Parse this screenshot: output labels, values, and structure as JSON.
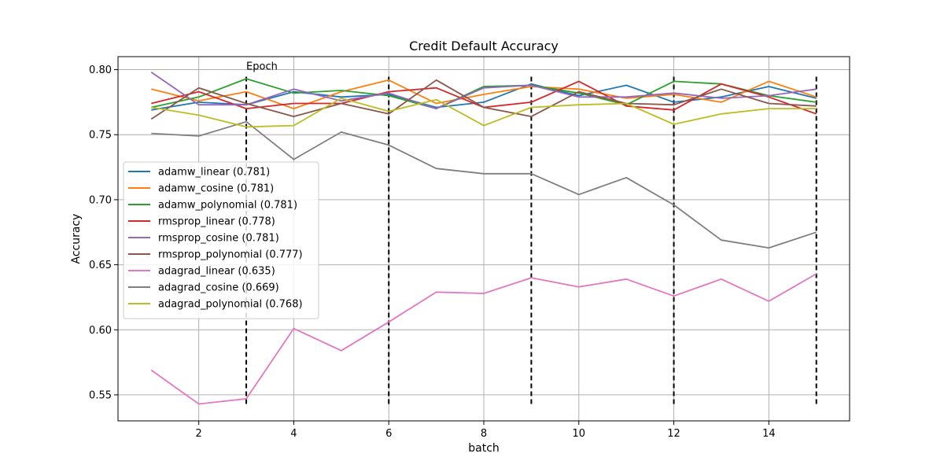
{
  "chart_data": {
    "type": "line",
    "title": "Credit Default Accuracy",
    "xlabel": "batch",
    "ylabel": "Accuracy",
    "xlim": [
      0.3,
      15.7
    ],
    "ylim": [
      0.53,
      0.81
    ],
    "xticks": [
      2,
      4,
      6,
      8,
      10,
      12,
      14
    ],
    "yticks": [
      0.55,
      0.6,
      0.65,
      0.7,
      0.75,
      0.8
    ],
    "ytick_labels": [
      "0.55",
      "0.60",
      "0.65",
      "0.70",
      "0.75",
      "0.80"
    ],
    "grid": true,
    "legend_position": "center-left",
    "x": [
      1,
      2,
      3,
      4,
      5,
      6,
      7,
      8,
      9,
      10,
      11,
      12,
      13,
      14,
      15
    ],
    "series": [
      {
        "name": "adamw_linear (0.781)",
        "color": "#1f77b4",
        "values": [
          0.769,
          0.775,
          0.773,
          0.783,
          0.779,
          0.781,
          0.771,
          0.775,
          0.789,
          0.78,
          0.788,
          0.775,
          0.779,
          0.787,
          0.778
        ]
      },
      {
        "name": "adamw_cosine (0.781)",
        "color": "#ff7f0e",
        "values": [
          0.785,
          0.776,
          0.783,
          0.77,
          0.783,
          0.792,
          0.774,
          0.781,
          0.787,
          0.785,
          0.778,
          0.781,
          0.775,
          0.791,
          0.779
        ]
      },
      {
        "name": "adamw_polynomial (0.781)",
        "color": "#2ca02c",
        "values": [
          0.771,
          0.779,
          0.793,
          0.782,
          0.784,
          0.78,
          0.77,
          0.787,
          0.788,
          0.782,
          0.773,
          0.791,
          0.789,
          0.78,
          0.775
        ]
      },
      {
        "name": "rmsprop_linear (0.778)",
        "color": "#d62728",
        "values": [
          0.774,
          0.783,
          0.77,
          0.774,
          0.774,
          0.783,
          0.786,
          0.771,
          0.775,
          0.791,
          0.772,
          0.769,
          0.789,
          0.779,
          0.766
        ]
      },
      {
        "name": "rmsprop_cosine (0.781)",
        "color": "#9467bd",
        "values": [
          0.798,
          0.773,
          0.773,
          0.785,
          0.776,
          0.782,
          0.77,
          0.786,
          0.788,
          0.779,
          0.779,
          0.782,
          0.778,
          0.78,
          0.785
        ]
      },
      {
        "name": "rmsprop_polynomial (0.777)",
        "color": "#8c564b",
        "values": [
          0.762,
          0.786,
          0.774,
          0.764,
          0.774,
          0.766,
          0.792,
          0.771,
          0.764,
          0.783,
          0.774,
          0.773,
          0.785,
          0.774,
          0.772
        ]
      },
      {
        "name": "adagrad_linear (0.635)",
        "color": "#e377c2",
        "values": [
          0.569,
          0.543,
          0.547,
          0.601,
          0.584,
          0.606,
          0.629,
          0.628,
          0.64,
          0.633,
          0.639,
          0.626,
          0.639,
          0.622,
          0.643
        ]
      },
      {
        "name": "adagrad_cosine (0.669)",
        "color": "#7f7f7f",
        "values": [
          0.751,
          0.749,
          0.76,
          0.731,
          0.752,
          0.742,
          0.724,
          0.72,
          0.72,
          0.704,
          0.717,
          0.696,
          0.669,
          0.663,
          0.675
        ]
      },
      {
        "name": "adagrad_polynomial (0.768)",
        "color": "#bcbd22",
        "values": [
          0.771,
          0.765,
          0.756,
          0.757,
          0.778,
          0.768,
          0.777,
          0.757,
          0.771,
          0.773,
          0.774,
          0.758,
          0.766,
          0.77,
          0.77
        ]
      }
    ],
    "epoch_markers": {
      "label": "Epoch",
      "x": [
        3,
        6,
        9,
        12,
        15
      ],
      "y_range": [
        0.543,
        0.797
      ],
      "color": "#000000",
      "style": "dashed"
    }
  }
}
